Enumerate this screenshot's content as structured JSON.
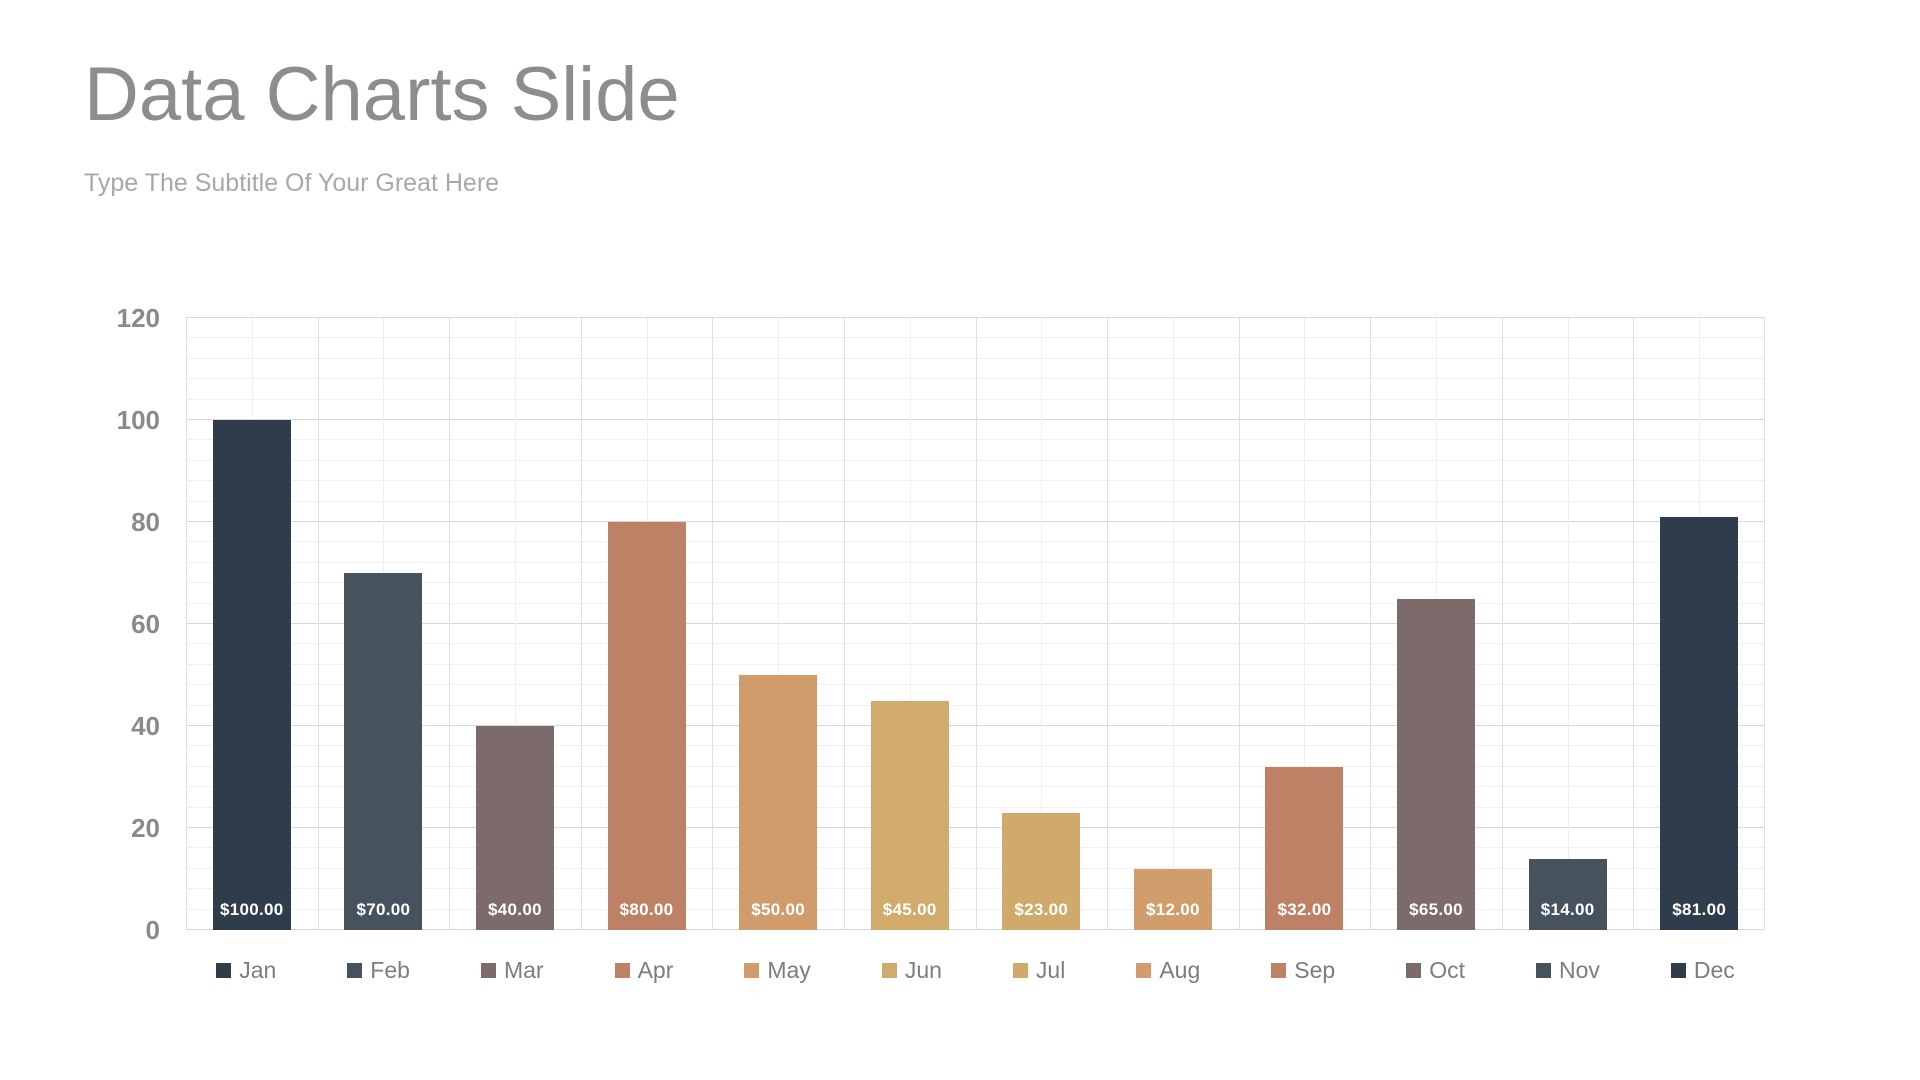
{
  "slide": {
    "title": "Data Charts Slide",
    "subtitle": "Type The Subtitle Of Your Great Here"
  },
  "chart_data": {
    "type": "bar",
    "title": "",
    "xlabel": "",
    "ylabel": "",
    "categories": [
      "Jan",
      "Feb",
      "Mar",
      "Apr",
      "May",
      "Jun",
      "Jul",
      "Aug",
      "Sep",
      "Oct",
      "Nov",
      "Dec"
    ],
    "values": [
      100,
      70,
      40,
      80,
      50,
      45,
      23,
      12,
      32,
      65,
      14,
      81
    ],
    "value_labels": [
      "$100.00",
      "$70.00",
      "$40.00",
      "$80.00",
      "$50.00",
      "$45.00",
      "$23.00",
      "$12.00",
      "$32.00",
      "$65.00",
      "$14.00",
      "$81.00"
    ],
    "bar_colors": [
      "#2e3c4b",
      "#46525e",
      "#7d6a6b",
      "#bd8266",
      "#d19c6c",
      "#d1ab6c",
      "#d0aa6a",
      "#d29d6d",
      "#bf8165",
      "#7d6a6b",
      "#46535f",
      "#2e3c4b"
    ],
    "ylim": [
      0,
      120
    ],
    "y_ticks": [
      0,
      20,
      40,
      60,
      80,
      100,
      120
    ],
    "y_minor_step": 4,
    "grid": true,
    "legend_position": "bottom"
  },
  "style": {
    "title_color": "#8d8d8d",
    "subtitle_color": "#a8a8a8",
    "axis_tick_color": "#8a8a8a",
    "legend_text_color": "#7d7d7d",
    "value_label_color": "#ffffff",
    "background": "#ffffff"
  }
}
